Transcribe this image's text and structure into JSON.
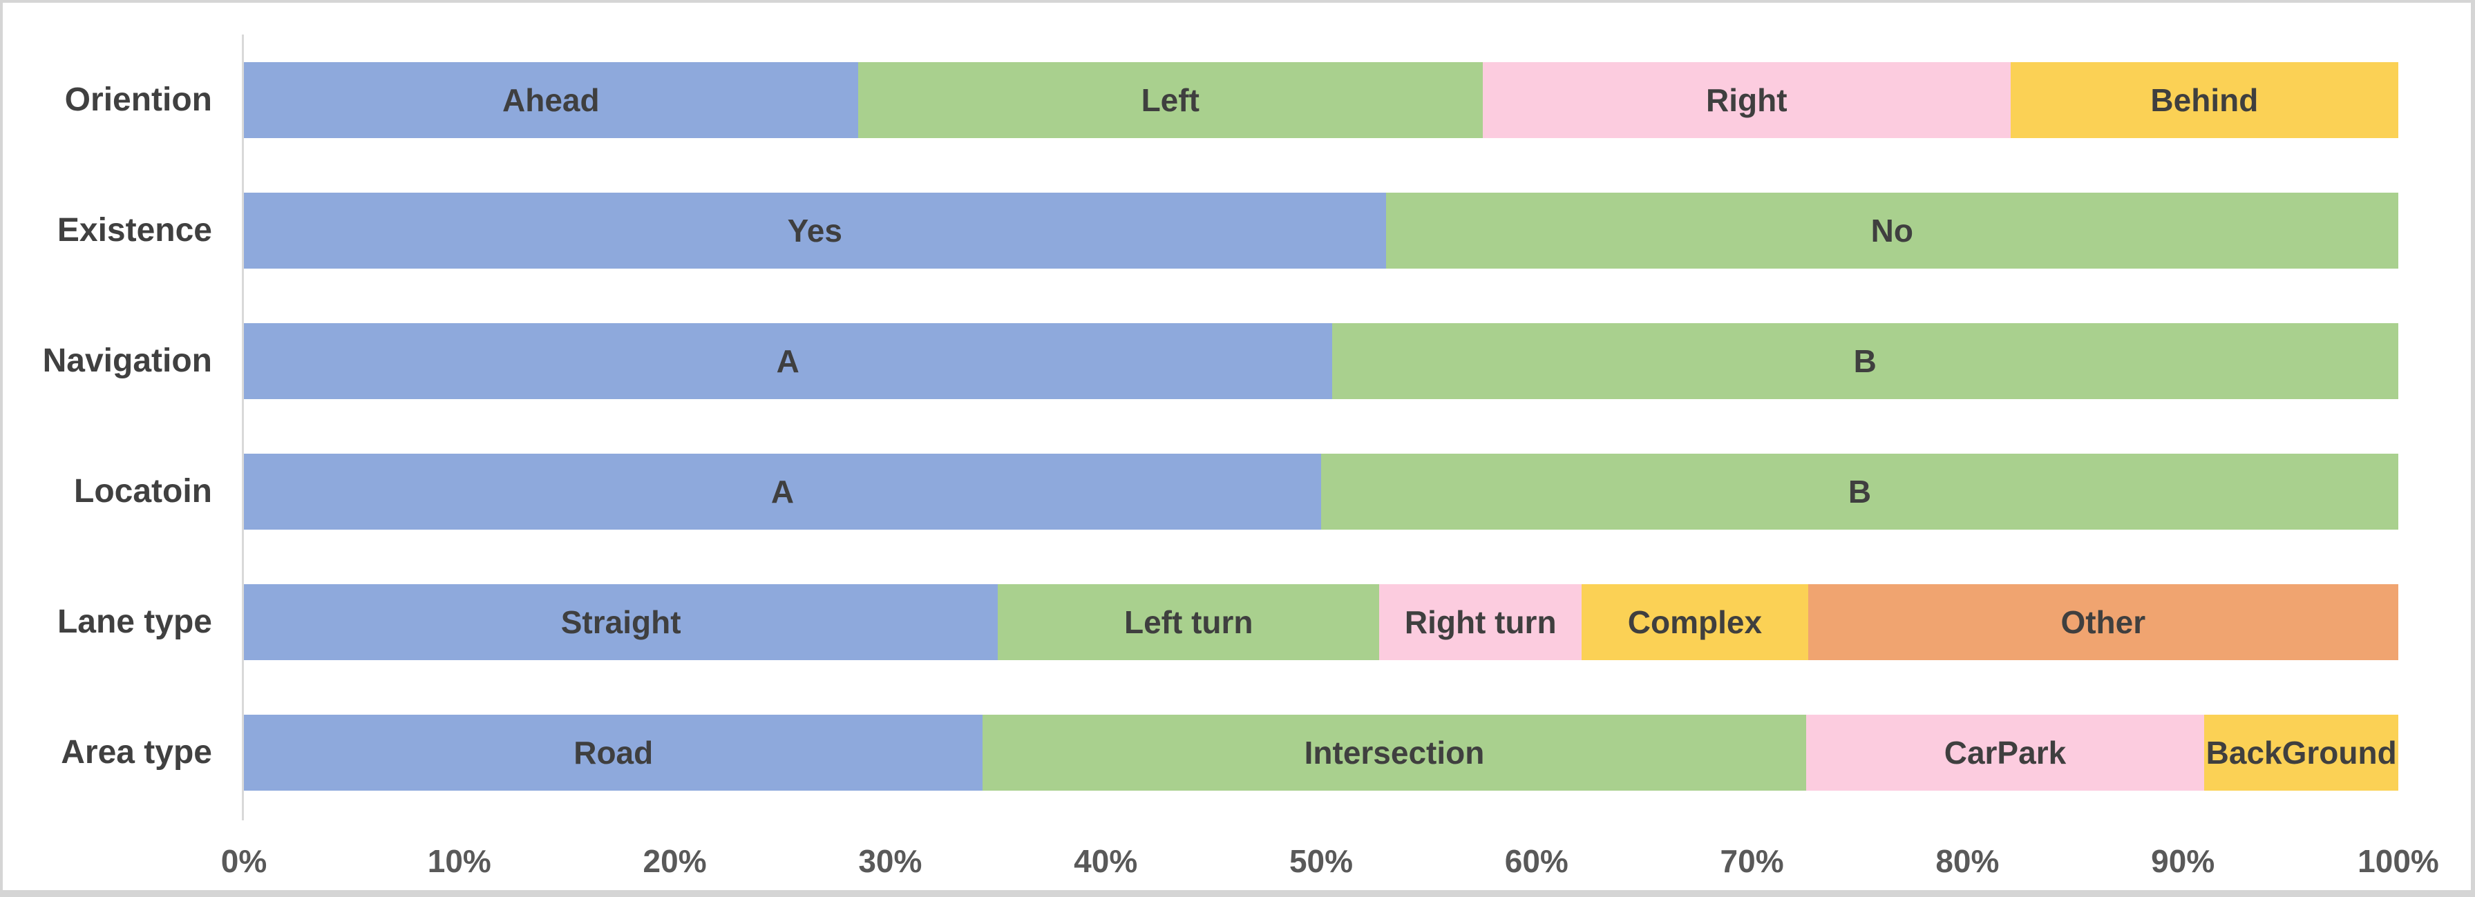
{
  "chart_data": {
    "type": "bar",
    "orientation": "horizontal",
    "stacked": true,
    "unit": "percent",
    "title": "",
    "xlabel": "",
    "ylabel": "",
    "xlim": [
      0,
      100
    ],
    "grid": false,
    "legend_position": "none (labels drawn inside segments)",
    "x_ticks": [
      "0%",
      "10%",
      "20%",
      "30%",
      "40%",
      "50%",
      "60%",
      "70%",
      "80%",
      "90%",
      "100%"
    ],
    "categories": [
      "Oriention",
      "Existence",
      "Navigation",
      "Locatoin",
      "Lane type",
      "Area type"
    ],
    "rows": [
      {
        "category": "Oriention",
        "segments": [
          {
            "label": "Ahead",
            "value": 28.5,
            "color": "blue"
          },
          {
            "label": "Left",
            "value": 29.0,
            "color": "green"
          },
          {
            "label": "Right",
            "value": 24.5,
            "color": "pink"
          },
          {
            "label": "Behind",
            "value": 18.0,
            "color": "yellow"
          }
        ]
      },
      {
        "category": "Existence",
        "segments": [
          {
            "label": "Yes",
            "value": 53.0,
            "color": "blue"
          },
          {
            "label": "No",
            "value": 47.0,
            "color": "green"
          }
        ]
      },
      {
        "category": "Navigation",
        "segments": [
          {
            "label": "A",
            "value": 50.5,
            "color": "blue"
          },
          {
            "label": "B",
            "value": 49.5,
            "color": "green"
          }
        ]
      },
      {
        "category": "Locatoin",
        "segments": [
          {
            "label": "A",
            "value": 50.0,
            "color": "blue"
          },
          {
            "label": "B",
            "value": 50.0,
            "color": "green"
          }
        ]
      },
      {
        "category": "Lane type",
        "segments": [
          {
            "label": "Straight",
            "value": 35.0,
            "color": "blue"
          },
          {
            "label": "Left turn",
            "value": 17.7,
            "color": "green"
          },
          {
            "label": "Right turn",
            "value": 9.4,
            "color": "pink"
          },
          {
            "label": "Complex",
            "value": 10.5,
            "color": "yellow"
          },
          {
            "label": "Other",
            "value": 27.4,
            "color": "orange"
          }
        ]
      },
      {
        "category": "Area type",
        "segments": [
          {
            "label": "Road",
            "value": 34.3,
            "color": "blue"
          },
          {
            "label": "Intersection",
            "value": 38.2,
            "color": "green"
          },
          {
            "label": "CarPark",
            "value": 18.5,
            "color": "pink"
          },
          {
            "label": "BackGround",
            "value": 9.0,
            "color": "yellow"
          }
        ]
      }
    ]
  },
  "colors": {
    "blue": "#8EA9DC",
    "green": "#A9D08E",
    "pink": "#FCCCDF",
    "yellow": "#FBD155",
    "orange": "#F0A470",
    "axis_line": "#D9D9D9",
    "frame_border": "#D5D5D5",
    "segment_text": "#3F3F3F",
    "category_text": "#404040",
    "tick_text": "#595959",
    "background": "#FFFFFF"
  }
}
